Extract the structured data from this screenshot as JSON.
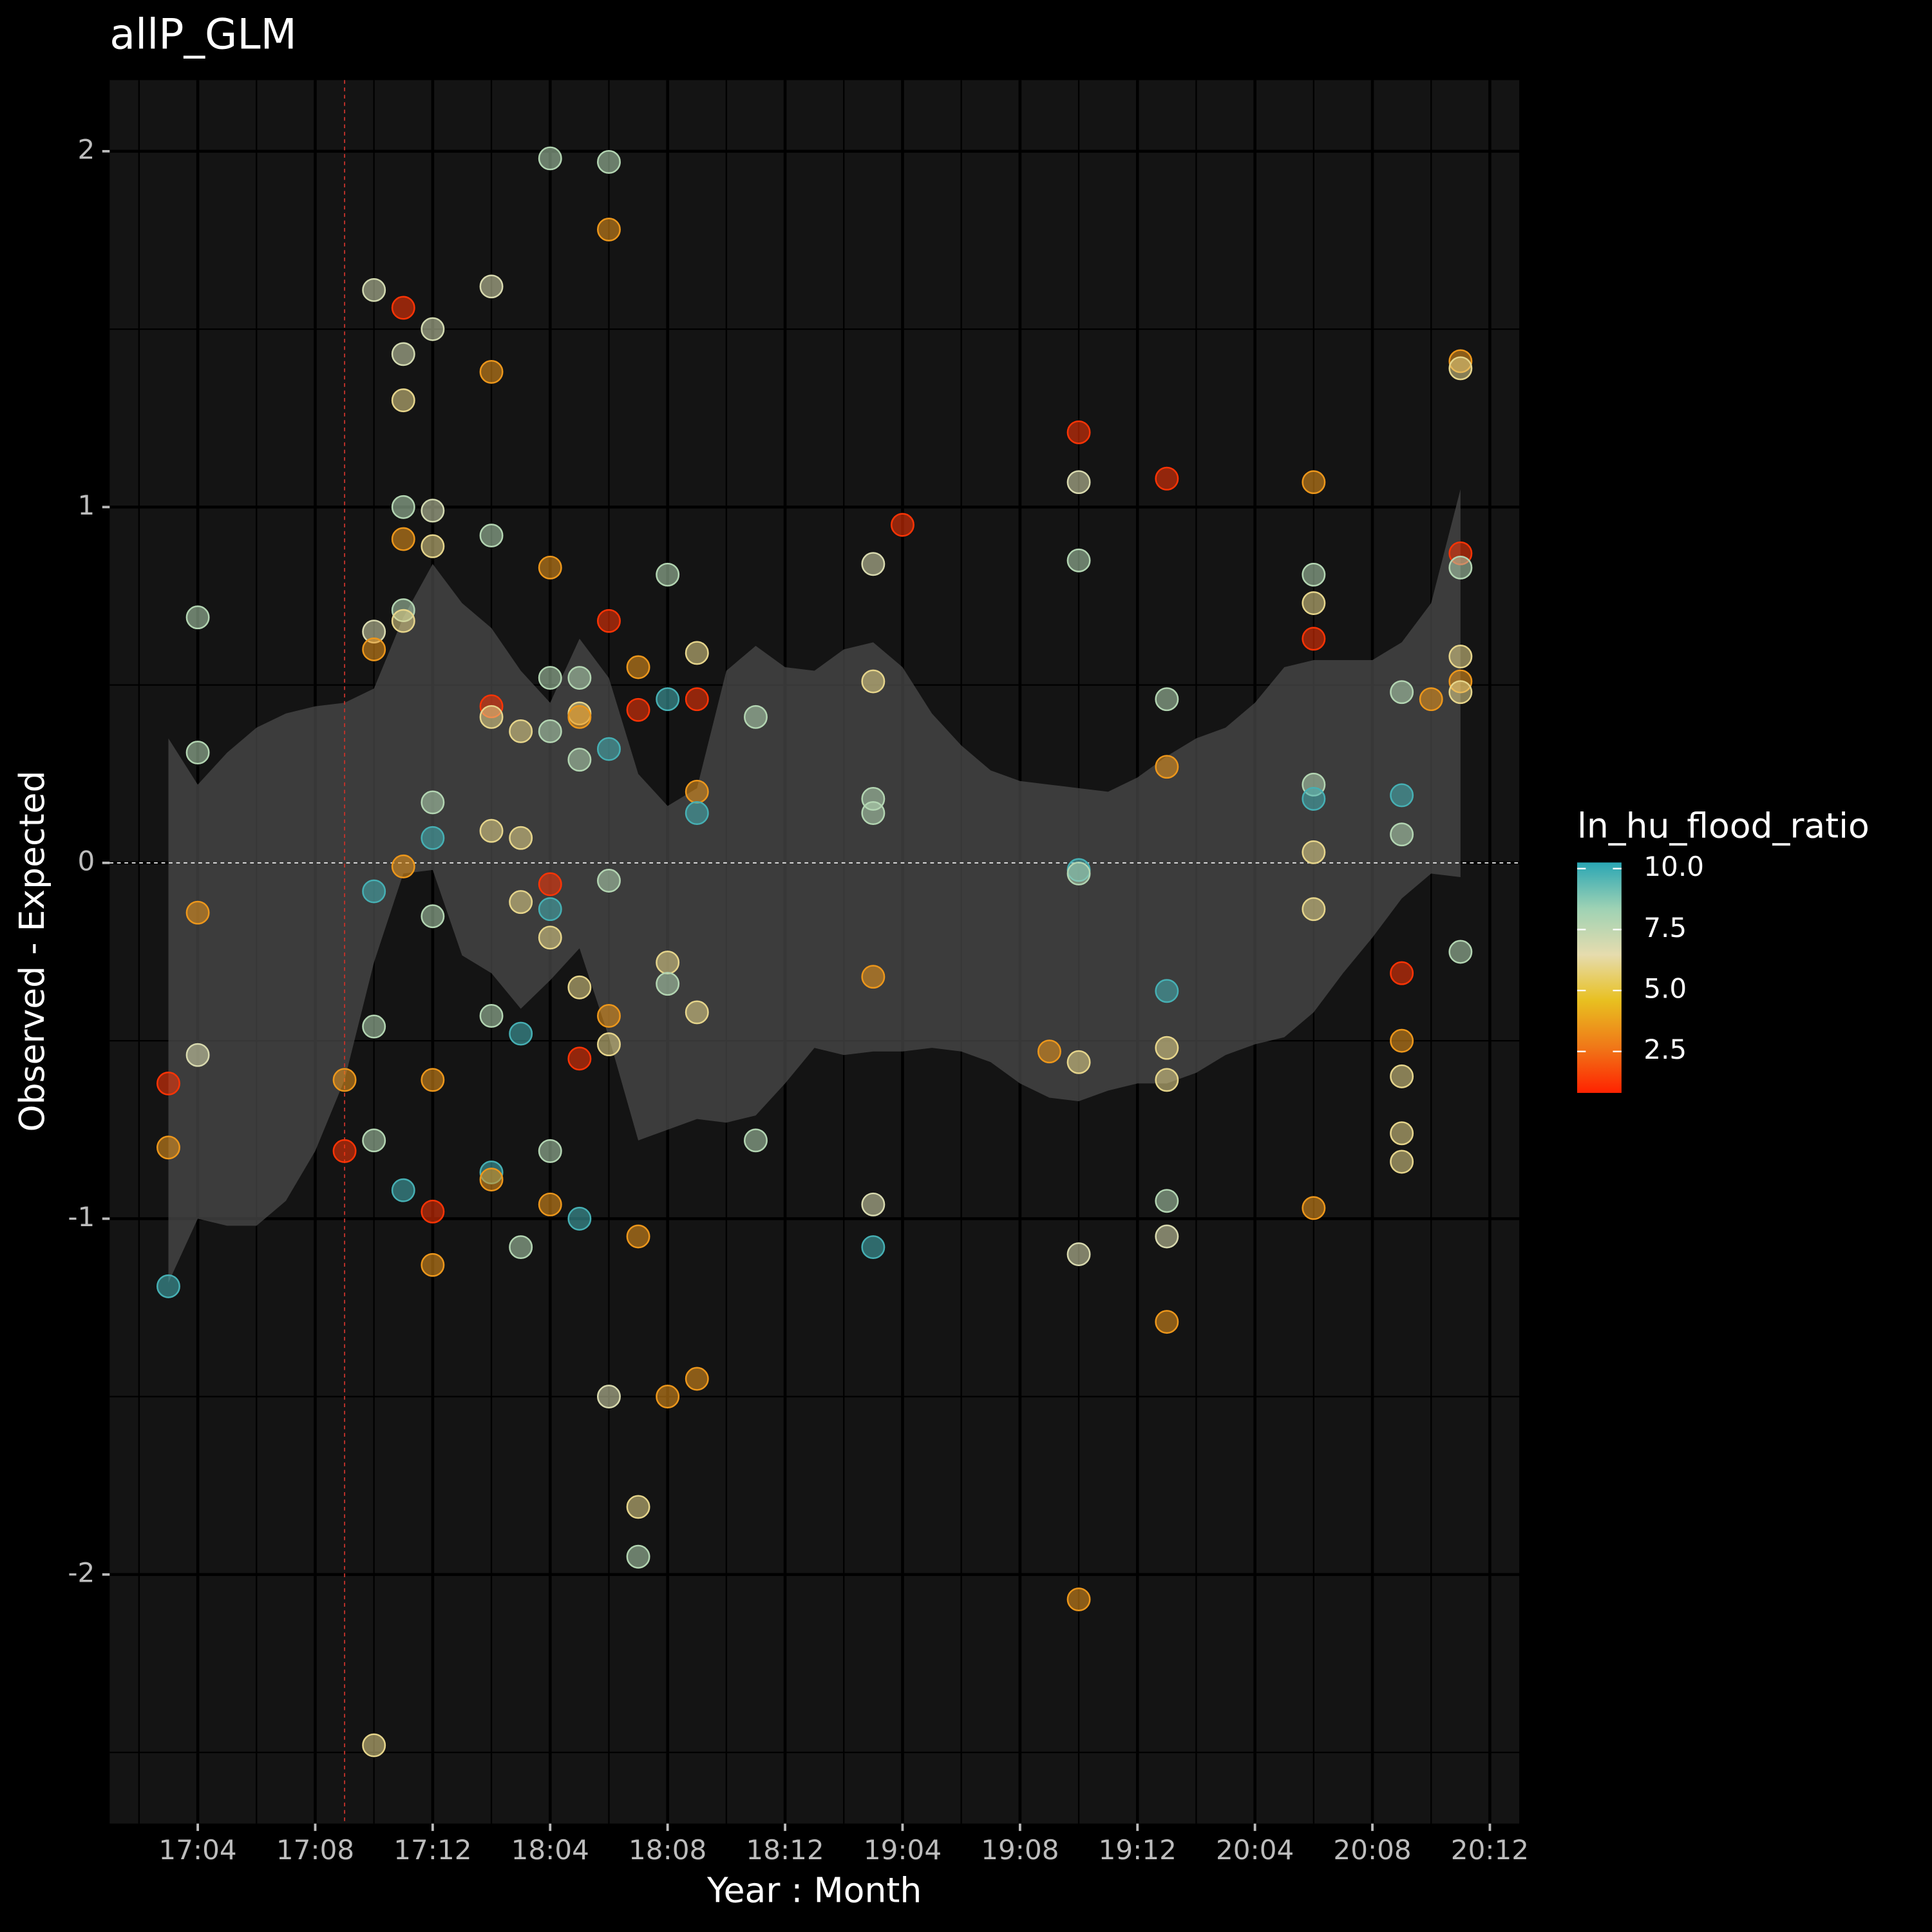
{
  "chart_data": {
    "type": "scatter",
    "title": "allP_GLM",
    "x_label": "Year : Month",
    "y_label": "Observed - Expected",
    "xlim": [
      "17:01",
      "21:01"
    ],
    "xticks": [
      "17:04",
      "17:08",
      "17:12",
      "18:04",
      "18:08",
      "18:12",
      "19:04",
      "19:08",
      "19:12",
      "20:04",
      "20:08",
      "20:12"
    ],
    "ylim": [
      -2.7,
      2.2
    ],
    "yticks": [
      -2,
      -1,
      0,
      1,
      2
    ],
    "grid": true,
    "hline": 0,
    "vline": "17:09",
    "vline_color": "#c0322b",
    "x": [
      "17:03",
      "17:03",
      "17:03",
      "17:04",
      "17:04",
      "17:04",
      "17:04",
      "17:09",
      "17:09",
      "17:10",
      "17:10",
      "17:10",
      "17:10",
      "17:10",
      "17:10",
      "17:10",
      "17:11",
      "17:11",
      "17:11",
      "17:11",
      "17:11",
      "17:11",
      "17:11",
      "17:11",
      "17:11",
      "17:12",
      "17:12",
      "17:12",
      "17:12",
      "17:12",
      "17:12",
      "17:12",
      "17:12",
      "17:12",
      "18:02",
      "18:02",
      "18:02",
      "18:02",
      "18:02",
      "18:02",
      "18:02",
      "18:02",
      "18:02",
      "18:03",
      "18:03",
      "18:03",
      "18:03",
      "18:03",
      "18:04",
      "18:04",
      "18:04",
      "18:04",
      "18:04",
      "18:04",
      "18:04",
      "18:04",
      "18:04",
      "18:05",
      "18:05",
      "18:05",
      "18:05",
      "18:05",
      "18:05",
      "18:05",
      "18:06",
      "18:06",
      "18:06",
      "18:06",
      "18:06",
      "18:06",
      "18:06",
      "18:06",
      "18:07",
      "18:07",
      "18:07",
      "18:07",
      "18:07",
      "18:08",
      "18:08",
      "18:08",
      "18:08",
      "18:08",
      "18:09",
      "18:09",
      "18:09",
      "18:09",
      "18:09",
      "18:09",
      "18:11",
      "18:11",
      "19:03",
      "19:03",
      "19:03",
      "19:03",
      "19:03",
      "19:03",
      "19:03",
      "19:04",
      "19:09",
      "19:10",
      "19:10",
      "19:10",
      "19:10",
      "19:10",
      "19:10",
      "19:10",
      "19:10",
      "20:01",
      "20:01",
      "20:01",
      "20:01",
      "20:01",
      "20:01",
      "20:01",
      "20:01",
      "20:01",
      "20:06",
      "20:06",
      "20:06",
      "20:06",
      "20:06",
      "20:06",
      "20:06",
      "20:06",
      "20:06",
      "20:09",
      "20:09",
      "20:09",
      "20:09",
      "20:09",
      "20:09",
      "20:09",
      "20:09",
      "20:10",
      "20:11",
      "20:11",
      "20:11",
      "20:11",
      "20:11",
      "20:11",
      "20:11",
      "20:11"
    ],
    "y": [
      -0.62,
      -0.8,
      -1.19,
      0.69,
      0.31,
      -0.14,
      -0.54,
      -0.61,
      -0.81,
      1.61,
      0.65,
      0.6,
      -0.08,
      -0.46,
      -0.78,
      -2.48,
      1.56,
      1.43,
      1.3,
      1.0,
      0.91,
      0.71,
      0.68,
      -0.01,
      -0.92,
      1.5,
      0.99,
      0.89,
      0.17,
      0.07,
      -0.15,
      -0.61,
      -0.98,
      -1.13,
      1.62,
      1.38,
      0.92,
      0.44,
      0.41,
      0.09,
      -0.43,
      -0.87,
      -0.89,
      0.37,
      0.07,
      -0.11,
      -0.48,
      -1.08,
      1.98,
      0.83,
      0.52,
      0.37,
      -0.06,
      -0.13,
      -0.21,
      -0.81,
      -0.96,
      0.52,
      0.42,
      0.41,
      0.29,
      -0.35,
      -0.55,
      -1.0,
      1.97,
      1.78,
      0.68,
      0.32,
      -0.05,
      -0.43,
      -0.51,
      -1.5,
      0.55,
      0.43,
      -1.05,
      -1.81,
      -1.95,
      0.81,
      0.46,
      -0.28,
      -0.34,
      -1.5,
      0.59,
      0.46,
      0.2,
      0.14,
      -0.42,
      -1.45,
      0.41,
      -0.78,
      0.84,
      0.51,
      0.18,
      0.14,
      -0.32,
      -0.96,
      -1.08,
      0.95,
      -0.53,
      1.21,
      1.07,
      0.85,
      -0.02,
      -0.03,
      -0.56,
      -1.1,
      -2.07,
      1.08,
      0.46,
      0.27,
      -0.36,
      -0.52,
      -0.61,
      -0.95,
      -1.05,
      -1.29,
      1.07,
      0.81,
      0.73,
      0.63,
      0.22,
      0.18,
      0.03,
      -0.13,
      -0.97,
      0.48,
      0.19,
      0.08,
      -0.31,
      -0.5,
      -0.6,
      -0.76,
      -0.84,
      0.46,
      1.41,
      1.39,
      0.87,
      0.83,
      0.58,
      0.51,
      0.48,
      -0.25
    ],
    "color_values": [
      1.2,
      3.5,
      9.8,
      7.8,
      7.8,
      3.5,
      6.8,
      3.5,
      1.2,
      7.0,
      6.8,
      3.5,
      9.8,
      7.8,
      7.8,
      6.0,
      1.2,
      7.0,
      6.0,
      7.8,
      3.5,
      7.8,
      6.0,
      3.5,
      9.8,
      7.0,
      7.0,
      6.0,
      7.8,
      9.8,
      7.8,
      3.5,
      1.2,
      3.5,
      6.8,
      3.5,
      7.8,
      1.2,
      6.0,
      6.0,
      7.8,
      9.8,
      3.5,
      6.0,
      6.0,
      6.0,
      9.8,
      7.8,
      7.8,
      3.5,
      7.8,
      7.8,
      1.2,
      9.8,
      6.0,
      7.8,
      3.5,
      7.8,
      6.0,
      3.5,
      7.8,
      6.0,
      1.2,
      9.8,
      7.8,
      3.5,
      1.2,
      9.8,
      7.8,
      3.5,
      6.0,
      6.8,
      3.5,
      1.2,
      3.5,
      6.0,
      7.8,
      7.8,
      9.8,
      6.0,
      7.8,
      3.5,
      6.0,
      1.2,
      3.5,
      9.8,
      6.0,
      3.5,
      7.8,
      7.8,
      6.8,
      6.0,
      7.8,
      7.8,
      3.5,
      6.8,
      9.8,
      1.2,
      3.5,
      1.2,
      6.8,
      7.8,
      9.8,
      7.8,
      6.0,
      6.8,
      3.5,
      1.2,
      7.8,
      3.5,
      9.8,
      6.0,
      6.0,
      7.8,
      6.8,
      3.5,
      3.5,
      7.8,
      6.0,
      1.2,
      7.8,
      9.8,
      6.0,
      6.0,
      3.5,
      7.8,
      9.8,
      7.8,
      1.2,
      3.5,
      6.0,
      6.0,
      6.0,
      3.5,
      3.5,
      6.0,
      1.2,
      7.8,
      6.0,
      3.5,
      6.0,
      7.8
    ],
    "band": {
      "color": "#4a4a4a",
      "x": [
        "17:03",
        "17:04",
        "17:05",
        "17:06",
        "17:07",
        "17:08",
        "17:09",
        "17:10",
        "17:11",
        "17:12",
        "18:01",
        "18:02",
        "18:03",
        "18:04",
        "18:05",
        "18:06",
        "18:07",
        "18:08",
        "18:09",
        "18:10",
        "18:11",
        "18:12",
        "19:01",
        "19:02",
        "19:03",
        "19:04",
        "19:05",
        "19:06",
        "19:07",
        "19:08",
        "19:09",
        "19:10",
        "19:11",
        "19:12",
        "20:01",
        "20:02",
        "20:03",
        "20:04",
        "20:05",
        "20:06",
        "20:07",
        "20:08",
        "20:09",
        "20:10",
        "20:11"
      ],
      "upper": [
        0.35,
        0.22,
        0.31,
        0.38,
        0.42,
        0.44,
        0.45,
        0.49,
        0.69,
        0.84,
        0.73,
        0.66,
        0.54,
        0.45,
        0.63,
        0.52,
        0.25,
        0.16,
        0.21,
        0.54,
        0.61,
        0.55,
        0.54,
        0.6,
        0.62,
        0.55,
        0.42,
        0.33,
        0.26,
        0.23,
        0.22,
        0.21,
        0.2,
        0.24,
        0.3,
        0.35,
        0.38,
        0.45,
        0.55,
        0.57,
        0.57,
        0.57,
        0.62,
        0.73,
        1.05
      ],
      "lower": [
        -1.18,
        -1.0,
        -1.02,
        -1.02,
        -0.95,
        -0.81,
        -0.61,
        -0.28,
        -0.03,
        -0.02,
        -0.26,
        -0.31,
        -0.41,
        -0.33,
        -0.24,
        -0.49,
        -0.78,
        -0.75,
        -0.72,
        -0.73,
        -0.71,
        -0.62,
        -0.52,
        -0.54,
        -0.53,
        -0.53,
        -0.52,
        -0.53,
        -0.56,
        -0.62,
        -0.66,
        -0.67,
        -0.64,
        -0.62,
        -0.62,
        -0.59,
        -0.54,
        -0.51,
        -0.49,
        -0.42,
        -0.31,
        -0.21,
        -0.1,
        -0.03,
        -0.04
      ]
    },
    "color_label": "ln_hu_flood_ratio",
    "colorlim": [
      0.8,
      10.25
    ],
    "colormap": [
      "#ff2200",
      "#f07818",
      "#e8c020",
      "#e6dcae",
      "#9ed2b4",
      "#2aa6b4"
    ],
    "colorbar_ticks": [
      {
        "value": 10,
        "label": "10.0"
      },
      7.5,
      {
        "value": 5,
        "label": "5.0"
      },
      2.5
    ]
  }
}
